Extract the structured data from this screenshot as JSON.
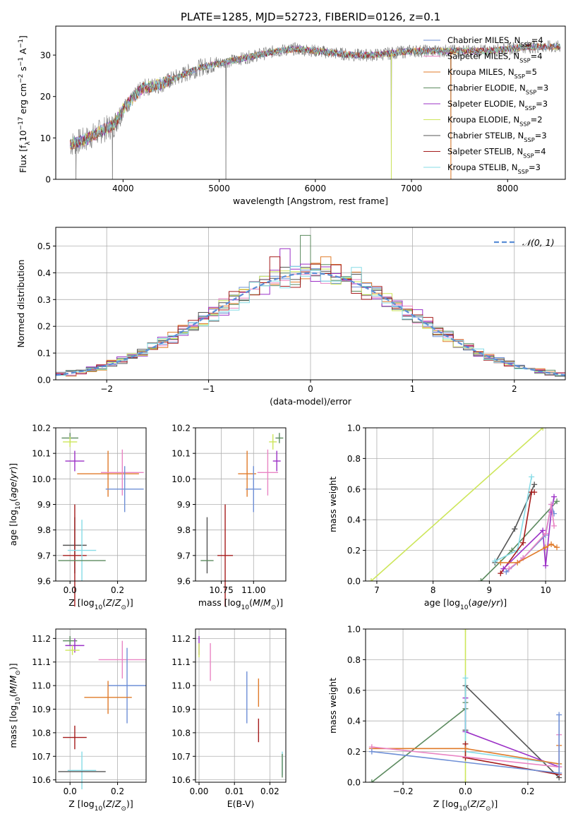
{
  "figure_title": "PLATE=1285, MJD=52723, FIBERID=0126, z=0.1",
  "colors": {
    "chabrier_miles": "#6e8fd6",
    "salpeter_miles": "#e985c4",
    "kroupa_miles": "#e07b2a",
    "chabrier_elodie": "#5b8a5e",
    "salpeter_elodie": "#9b30c6",
    "kroupa_elodie": "#cde65a",
    "chabrier_stelib": "#555555",
    "salpeter_stelib": "#a51c1c",
    "kroupa_stelib": "#86dbe6",
    "grid": "#b0b0b0",
    "normal_curve": "#5b8ed6"
  },
  "chart_data": [
    {
      "id": "spectrum",
      "type": "line",
      "xlabel": "wavelength [Angstrom, rest frame]",
      "ylabel": "Flux [f_λ 10^-17 erg cm^-2 s^-1 A^-1]",
      "xlim": [
        3300,
        8600
      ],
      "ylim": [
        0,
        37
      ],
      "xticks": [
        4000,
        5000,
        6000,
        7000,
        8000
      ],
      "yticks": [
        0,
        10,
        20,
        30
      ],
      "legend_position": "right",
      "legend": [
        {
          "label": "Chabrier MILES, N_SSP=4",
          "color_key": "chabrier_miles"
        },
        {
          "label": "Salpeter MILES, N_SSP=4",
          "color_key": "salpeter_miles"
        },
        {
          "label": "Kroupa MILES, N_SSP=5",
          "color_key": "kroupa_miles"
        },
        {
          "label": "Chabrier ELODIE, N_SSP=3",
          "color_key": "chabrier_elodie"
        },
        {
          "label": "Salpeter ELODIE, N_SSP=3",
          "color_key": "salpeter_elodie"
        },
        {
          "label": "Kroupa ELODIE, N_SSP=2",
          "color_key": "kroupa_elodie"
        },
        {
          "label": "Chabrier STELIB, N_SSP=3",
          "color_key": "chabrier_stelib"
        },
        {
          "label": "Salpeter STELIB, N_SSP=4",
          "color_key": "salpeter_stelib"
        },
        {
          "label": "Kroupa STELIB, N_SSP=3",
          "color_key": "kroupa_stelib"
        }
      ],
      "observed_continuum": [
        [
          3450,
          8.5
        ],
        [
          3600,
          9.5
        ],
        [
          3800,
          12
        ],
        [
          3900,
          13
        ],
        [
          4000,
          17
        ],
        [
          4200,
          22
        ],
        [
          4400,
          23
        ],
        [
          4600,
          25
        ],
        [
          4800,
          27
        ],
        [
          5000,
          28
        ],
        [
          5200,
          29
        ],
        [
          5400,
          30
        ],
        [
          5600,
          31
        ],
        [
          5800,
          31.5
        ],
        [
          6000,
          31
        ],
        [
          6200,
          30.5
        ],
        [
          6400,
          30
        ],
        [
          6600,
          30
        ],
        [
          6800,
          30.5
        ],
        [
          7000,
          31
        ],
        [
          7200,
          31
        ],
        [
          7400,
          31
        ],
        [
          7600,
          31
        ],
        [
          7800,
          31
        ],
        [
          8000,
          31.5
        ],
        [
          8200,
          32
        ],
        [
          8400,
          32
        ],
        [
          8550,
          32
        ]
      ],
      "observed_dips": [
        [
          5070,
          0
        ],
        [
          3890,
          0.5
        ],
        [
          6790,
          0
        ],
        [
          7410,
          0
        ],
        [
          3510,
          0
        ]
      ]
    },
    {
      "id": "residual-histogram",
      "type": "histogram",
      "xlabel": "(data-model)/error",
      "ylabel": "Normed distribution",
      "xlim": [
        -2.5,
        2.5
      ],
      "ylim": [
        0,
        0.57
      ],
      "xticks": [
        -2,
        -1,
        0,
        1,
        2
      ],
      "yticks": [
        0.0,
        0.1,
        0.2,
        0.3,
        0.4,
        0.5
      ],
      "bin_width": 0.1,
      "curve_label": "𝒩(0, 1)",
      "legend_position": "upper right",
      "peak_bins": [
        {
          "x": -0.05,
          "value": 0.54,
          "color_key": "chabrier_elodie"
        },
        {
          "x": -0.25,
          "value": 0.49,
          "color_key": "salpeter_elodie"
        },
        {
          "x": -0.35,
          "value": 0.46,
          "color_key": "salpeter_stelib"
        },
        {
          "x": 0.15,
          "value": 0.46,
          "color_key": "kroupa_miles"
        },
        {
          "x": 0.25,
          "value": 0.43,
          "color_key": "salpeter_stelib"
        },
        {
          "x": 0.45,
          "value": 0.42,
          "color_key": "kroupa_stelib"
        }
      ]
    },
    {
      "id": "age-vs-metallicity",
      "type": "errorbar",
      "xlabel": "Z [log10(Z/Z⊙)]",
      "ylabel": "age [log10(age/yr)]",
      "xlim": [
        -0.06,
        0.32
      ],
      "ylim": [
        9.6,
        10.2
      ],
      "xticks": [
        0.0,
        0.2
      ],
      "yticks": [
        9.6,
        9.7,
        9.8,
        9.9,
        10.0,
        10.1,
        10.2
      ],
      "points": [
        {
          "x": 0.0,
          "y": 10.16,
          "xerr": 0.035,
          "yerr": 0.02,
          "color_key": "chabrier_elodie"
        },
        {
          "x": 0.0,
          "y": 10.145,
          "xerr": 0.03,
          "yerr": 0.02,
          "color_key": "kroupa_elodie"
        },
        {
          "x": 0.02,
          "y": 10.07,
          "xerr": 0.04,
          "yerr": 0.04,
          "color_key": "salpeter_elodie"
        },
        {
          "x": 0.16,
          "y": 10.02,
          "xerr": 0.13,
          "yerr": 0.09,
          "color_key": "kroupa_miles"
        },
        {
          "x": 0.22,
          "y": 10.025,
          "xerr": 0.09,
          "yerr": 0.09,
          "color_key": "salpeter_miles"
        },
        {
          "x": 0.23,
          "y": 9.96,
          "xerr": 0.08,
          "yerr": 0.09,
          "color_key": "chabrier_miles"
        },
        {
          "x": 0.02,
          "y": 9.74,
          "xerr": 0.05,
          "yerr": 0.11,
          "color_key": "chabrier_stelib"
        },
        {
          "x": 0.02,
          "y": 9.7,
          "xerr": 0.05,
          "yerr": 0.2,
          "color_key": "salpeter_stelib"
        },
        {
          "x": 0.05,
          "y": 9.72,
          "xerr": 0.06,
          "yerr": 0.12,
          "color_key": "kroupa_stelib"
        },
        {
          "x": 0.05,
          "y": 9.68,
          "xerr": 0.1,
          "yerr": 0.0,
          "color_key": "chabrier_elodie"
        }
      ]
    },
    {
      "id": "age-vs-mass",
      "type": "errorbar",
      "xlabel": "mass [log10(M/M⊙)]",
      "ylabel": "",
      "xlim": [
        10.55,
        11.25
      ],
      "ylim": [
        9.6,
        10.2
      ],
      "xticks": [
        10.75,
        11.0
      ],
      "yticks": [
        9.6,
        9.7,
        9.8,
        9.9,
        10.0,
        10.1,
        10.2
      ],
      "points": [
        {
          "x": 11.2,
          "y": 10.16,
          "xerr": 0.03,
          "yerr": 0.02,
          "color_key": "chabrier_elodie"
        },
        {
          "x": 11.15,
          "y": 10.145,
          "xerr": 0.03,
          "yerr": 0.03,
          "color_key": "kroupa_elodie"
        },
        {
          "x": 11.18,
          "y": 10.07,
          "xerr": 0.03,
          "yerr": 0.04,
          "color_key": "salpeter_elodie"
        },
        {
          "x": 10.95,
          "y": 10.02,
          "xerr": 0.07,
          "yerr": 0.09,
          "color_key": "kroupa_miles"
        },
        {
          "x": 11.11,
          "y": 10.025,
          "xerr": 0.08,
          "yerr": 0.09,
          "color_key": "salpeter_miles"
        },
        {
          "x": 11.0,
          "y": 9.96,
          "xerr": 0.06,
          "yerr": 0.09,
          "color_key": "chabrier_miles"
        },
        {
          "x": 10.78,
          "y": 9.7,
          "xerr": 0.06,
          "yerr": 0.2,
          "color_key": "salpeter_stelib"
        },
        {
          "x": 10.64,
          "y": 9.74,
          "xerr": 0.0,
          "yerr": 0.11,
          "color_key": "chabrier_stelib"
        },
        {
          "x": 10.64,
          "y": 9.68,
          "xerr": 0.05,
          "yerr": 0.0,
          "color_key": "chabrier_elodie"
        }
      ]
    },
    {
      "id": "mass-weight-vs-age",
      "type": "line",
      "xlabel": "age [log10(age/yr)]",
      "ylabel": "mass weight",
      "xlim": [
        6.8,
        10.35
      ],
      "ylim": [
        0.0,
        1.0
      ],
      "xticks": [
        7,
        8,
        9,
        10
      ],
      "yticks": [
        0.0,
        0.2,
        0.4,
        0.6,
        0.8,
        1.0
      ],
      "series": [
        {
          "color_key": "kroupa_elodie",
          "x": [
            6.9,
            9.95
          ],
          "y": [
            0.0,
            1.0
          ]
        },
        {
          "color_key": "chabrier_elodie",
          "x": [
            8.85,
            9.4,
            10.2
          ],
          "y": [
            0.0,
            0.2,
            0.52
          ]
        },
        {
          "color_key": "chabrier_stelib",
          "x": [
            9.1,
            9.45,
            9.8
          ],
          "y": [
            0.12,
            0.34,
            0.63
          ]
        },
        {
          "color_key": "kroupa_stelib",
          "x": [
            9.1,
            9.5,
            9.75
          ],
          "y": [
            0.13,
            0.2,
            0.68
          ]
        },
        {
          "color_key": "salpeter_stelib",
          "x": [
            9.2,
            9.6,
            9.75,
            9.8
          ],
          "y": [
            0.05,
            0.25,
            0.58,
            0.58
          ]
        },
        {
          "color_key": "salpeter_elodie",
          "x": [
            9.25,
            9.95,
            10.0,
            10.1,
            10.15
          ],
          "y": [
            0.08,
            0.33,
            0.1,
            0.45,
            0.55
          ]
        },
        {
          "color_key": "chabrier_miles",
          "x": [
            9.3,
            9.6,
            10.0,
            10.1,
            10.15
          ],
          "y": [
            0.06,
            0.15,
            0.3,
            0.5,
            0.44
          ]
        },
        {
          "color_key": "salpeter_miles",
          "x": [
            9.35,
            9.6,
            10.0,
            10.1,
            10.15
          ],
          "y": [
            0.08,
            0.15,
            0.31,
            0.5,
            0.36
          ]
        },
        {
          "color_key": "kroupa_miles",
          "x": [
            9.2,
            9.5,
            10.0,
            10.1,
            10.2
          ],
          "y": [
            0.12,
            0.12,
            0.22,
            0.24,
            0.22
          ]
        }
      ]
    },
    {
      "id": "mass-vs-metallicity",
      "type": "errorbar",
      "xlabel": "Z [log10(Z/Z⊙)]",
      "ylabel": "mass [log10(M/M⊙)]",
      "xlim": [
        -0.06,
        0.32
      ],
      "ylim": [
        10.59,
        11.24
      ],
      "xticks": [
        0.0,
        0.2
      ],
      "yticks": [
        10.6,
        10.7,
        10.8,
        10.9,
        11.0,
        11.1,
        11.2
      ],
      "points": [
        {
          "x": 0.0,
          "y": 11.19,
          "xerr": 0.03,
          "yerr": 0.02,
          "color_key": "chabrier_elodie"
        },
        {
          "x": 0.02,
          "y": 11.17,
          "xerr": 0.04,
          "yerr": 0.03,
          "color_key": "salpeter_elodie"
        },
        {
          "x": 0.01,
          "y": 11.15,
          "xerr": 0.03,
          "yerr": 0.02,
          "color_key": "kroupa_elodie"
        },
        {
          "x": 0.22,
          "y": 11.11,
          "xerr": 0.1,
          "yerr": 0.08,
          "color_key": "salpeter_miles"
        },
        {
          "x": 0.24,
          "y": 11.0,
          "xerr": 0.08,
          "yerr": 0.16,
          "color_key": "chabrier_miles"
        },
        {
          "x": 0.16,
          "y": 10.95,
          "xerr": 0.1,
          "yerr": 0.07,
          "color_key": "kroupa_miles"
        },
        {
          "x": 0.02,
          "y": 10.78,
          "xerr": 0.05,
          "yerr": 0.05,
          "color_key": "salpeter_stelib"
        },
        {
          "x": 0.05,
          "y": 10.64,
          "xerr": 0.06,
          "yerr": 0.08,
          "color_key": "kroupa_stelib"
        },
        {
          "x": 0.05,
          "y": 10.635,
          "xerr": 0.1,
          "yerr": 0.0,
          "color_key": "chabrier_stelib"
        }
      ]
    },
    {
      "id": "mass-vs-extinction",
      "type": "errorbar",
      "xlabel": "E(B-V)",
      "ylabel": "",
      "xlim": [
        -0.001,
        0.0245
      ],
      "ylim": [
        10.59,
        11.24
      ],
      "xticks": [
        0.0,
        0.01,
        0.02
      ],
      "yticks": [
        10.6,
        10.7,
        10.8,
        10.9,
        11.0,
        11.1,
        11.2
      ],
      "points": [
        {
          "x": 0.0,
          "y": 11.17,
          "xerr": 0.0,
          "yerr": 0.04,
          "color_key": "salpeter_elodie"
        },
        {
          "x": 0.0,
          "y": 11.15,
          "xerr": 0.0,
          "yerr": 0.03,
          "color_key": "kroupa_elodie"
        },
        {
          "x": 0.0032,
          "y": 11.1,
          "xerr": 0.0,
          "yerr": 0.08,
          "color_key": "salpeter_miles"
        },
        {
          "x": 0.0135,
          "y": 10.95,
          "xerr": 0.0,
          "yerr": 0.11,
          "color_key": "chabrier_miles"
        },
        {
          "x": 0.0168,
          "y": 10.97,
          "xerr": 0.0,
          "yerr": 0.06,
          "color_key": "kroupa_miles"
        },
        {
          "x": 0.0168,
          "y": 10.81,
          "xerr": 0.0,
          "yerr": 0.05,
          "color_key": "salpeter_stelib"
        },
        {
          "x": 0.0235,
          "y": 10.67,
          "xerr": 0.0,
          "yerr": 0.05,
          "color_key": "kroupa_stelib"
        },
        {
          "x": 0.0235,
          "y": 10.66,
          "xerr": 0.0,
          "yerr": 0.05,
          "color_key": "chabrier_elodie"
        }
      ]
    },
    {
      "id": "mass-weight-vs-metallicity",
      "type": "line",
      "xlabel": "Z [log10(Z/Z⊙)]",
      "ylabel": "mass weight",
      "xlim": [
        -0.32,
        0.32
      ],
      "ylim": [
        0.0,
        1.0
      ],
      "xticks": [
        -0.2,
        0.0,
        0.2
      ],
      "yticks": [
        0.0,
        0.2,
        0.4,
        0.6,
        0.8,
        1.0
      ],
      "series": [
        {
          "color_key": "kroupa_elodie",
          "x": [
            0.0,
            0.0
          ],
          "y": [
            0.0,
            1.0
          ]
        },
        {
          "color_key": "chabrier_elodie",
          "x": [
            -0.3,
            0.0,
            0.0
          ],
          "y": [
            0.0,
            0.48,
            0.52
          ]
        },
        {
          "color_key": "chabrier_stelib",
          "x": [
            0.0,
            0.0,
            0.3
          ],
          "y": [
            0.34,
            0.63,
            0.03
          ]
        },
        {
          "color_key": "salpeter_elodie",
          "x": [
            0.0,
            0.0,
            0.3
          ],
          "y": [
            0.55,
            0.33,
            0.1
          ]
        },
        {
          "color_key": "kroupa_stelib",
          "x": [
            0.0,
            0.0,
            0.3
          ],
          "y": [
            0.68,
            0.2,
            0.12
          ]
        },
        {
          "color_key": "salpeter_stelib",
          "x": [
            0.0,
            0.0,
            0.3
          ],
          "y": [
            0.25,
            0.16,
            0.05
          ]
        },
        {
          "color_key": "kroupa_miles",
          "x": [
            -0.3,
            0.0,
            0.3,
            0.3
          ],
          "y": [
            0.22,
            0.22,
            0.12,
            0.24
          ]
        },
        {
          "color_key": "salpeter_miles",
          "x": [
            -0.3,
            0.3,
            0.3
          ],
          "y": [
            0.23,
            0.1,
            0.31
          ]
        },
        {
          "color_key": "chabrier_miles",
          "x": [
            -0.3,
            0.3,
            0.3
          ],
          "y": [
            0.2,
            0.06,
            0.44
          ]
        }
      ]
    }
  ]
}
